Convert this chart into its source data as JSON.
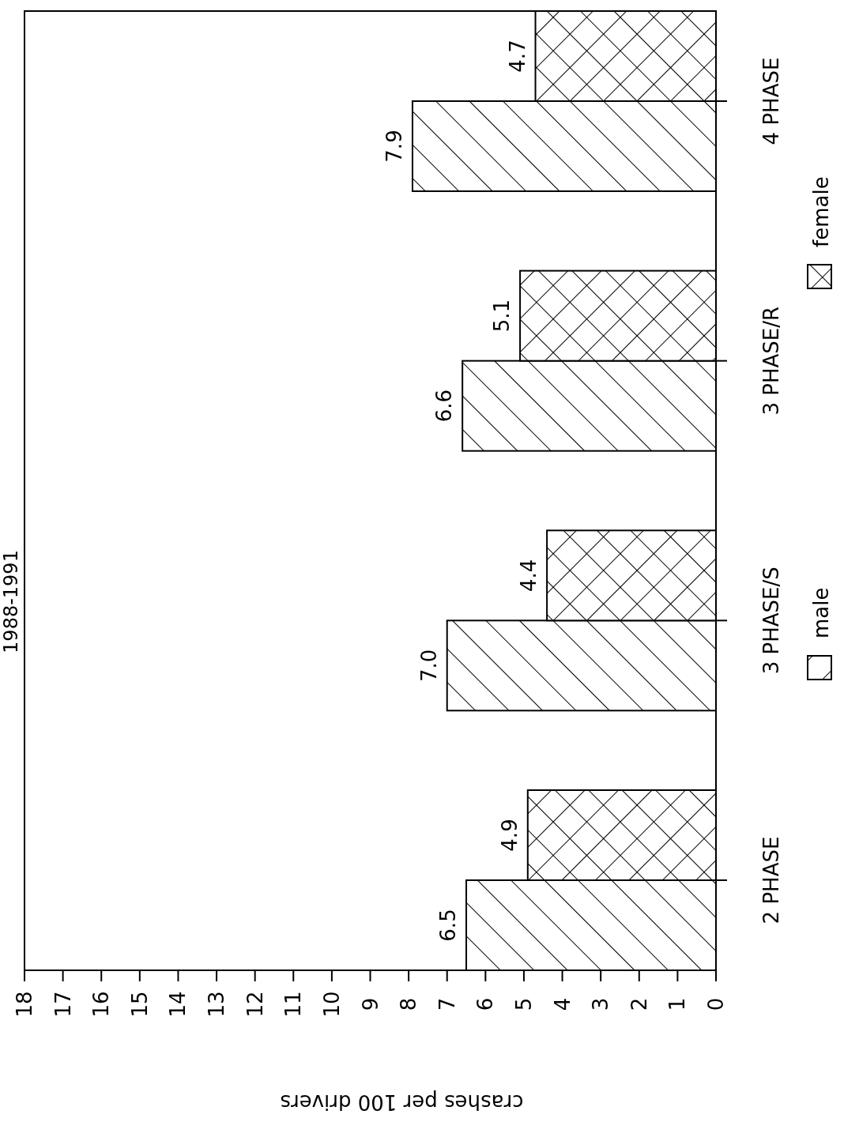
{
  "chart_data": {
    "type": "bar",
    "orientation": "horizontal",
    "title": "1988-1991",
    "xlabel": "crashes per 100 drivers",
    "categories": [
      "4 PHASE",
      "3 PHASE/R",
      "3 PHASE/S",
      "2 PHASE"
    ],
    "series": [
      {
        "name": "male",
        "color": "#000000",
        "values": [
          7.9,
          6.6,
          7.0,
          6.5
        ],
        "value_labels": [
          "7.9",
          "6.6",
          "7.0",
          "6.5"
        ]
      },
      {
        "name": "female",
        "color": "#000000",
        "values": [
          4.7,
          5.1,
          4.4,
          4.9
        ],
        "value_labels": [
          "4.7",
          "5.1",
          "4.4",
          "4.9"
        ]
      }
    ],
    "xlim": [
      18,
      0
    ],
    "xticks": [
      0,
      1,
      2,
      3,
      4,
      5,
      6,
      7,
      8,
      9,
      10,
      11,
      12,
      13,
      14,
      15,
      16,
      17,
      18
    ],
    "grid": false,
    "legend": "right"
  }
}
